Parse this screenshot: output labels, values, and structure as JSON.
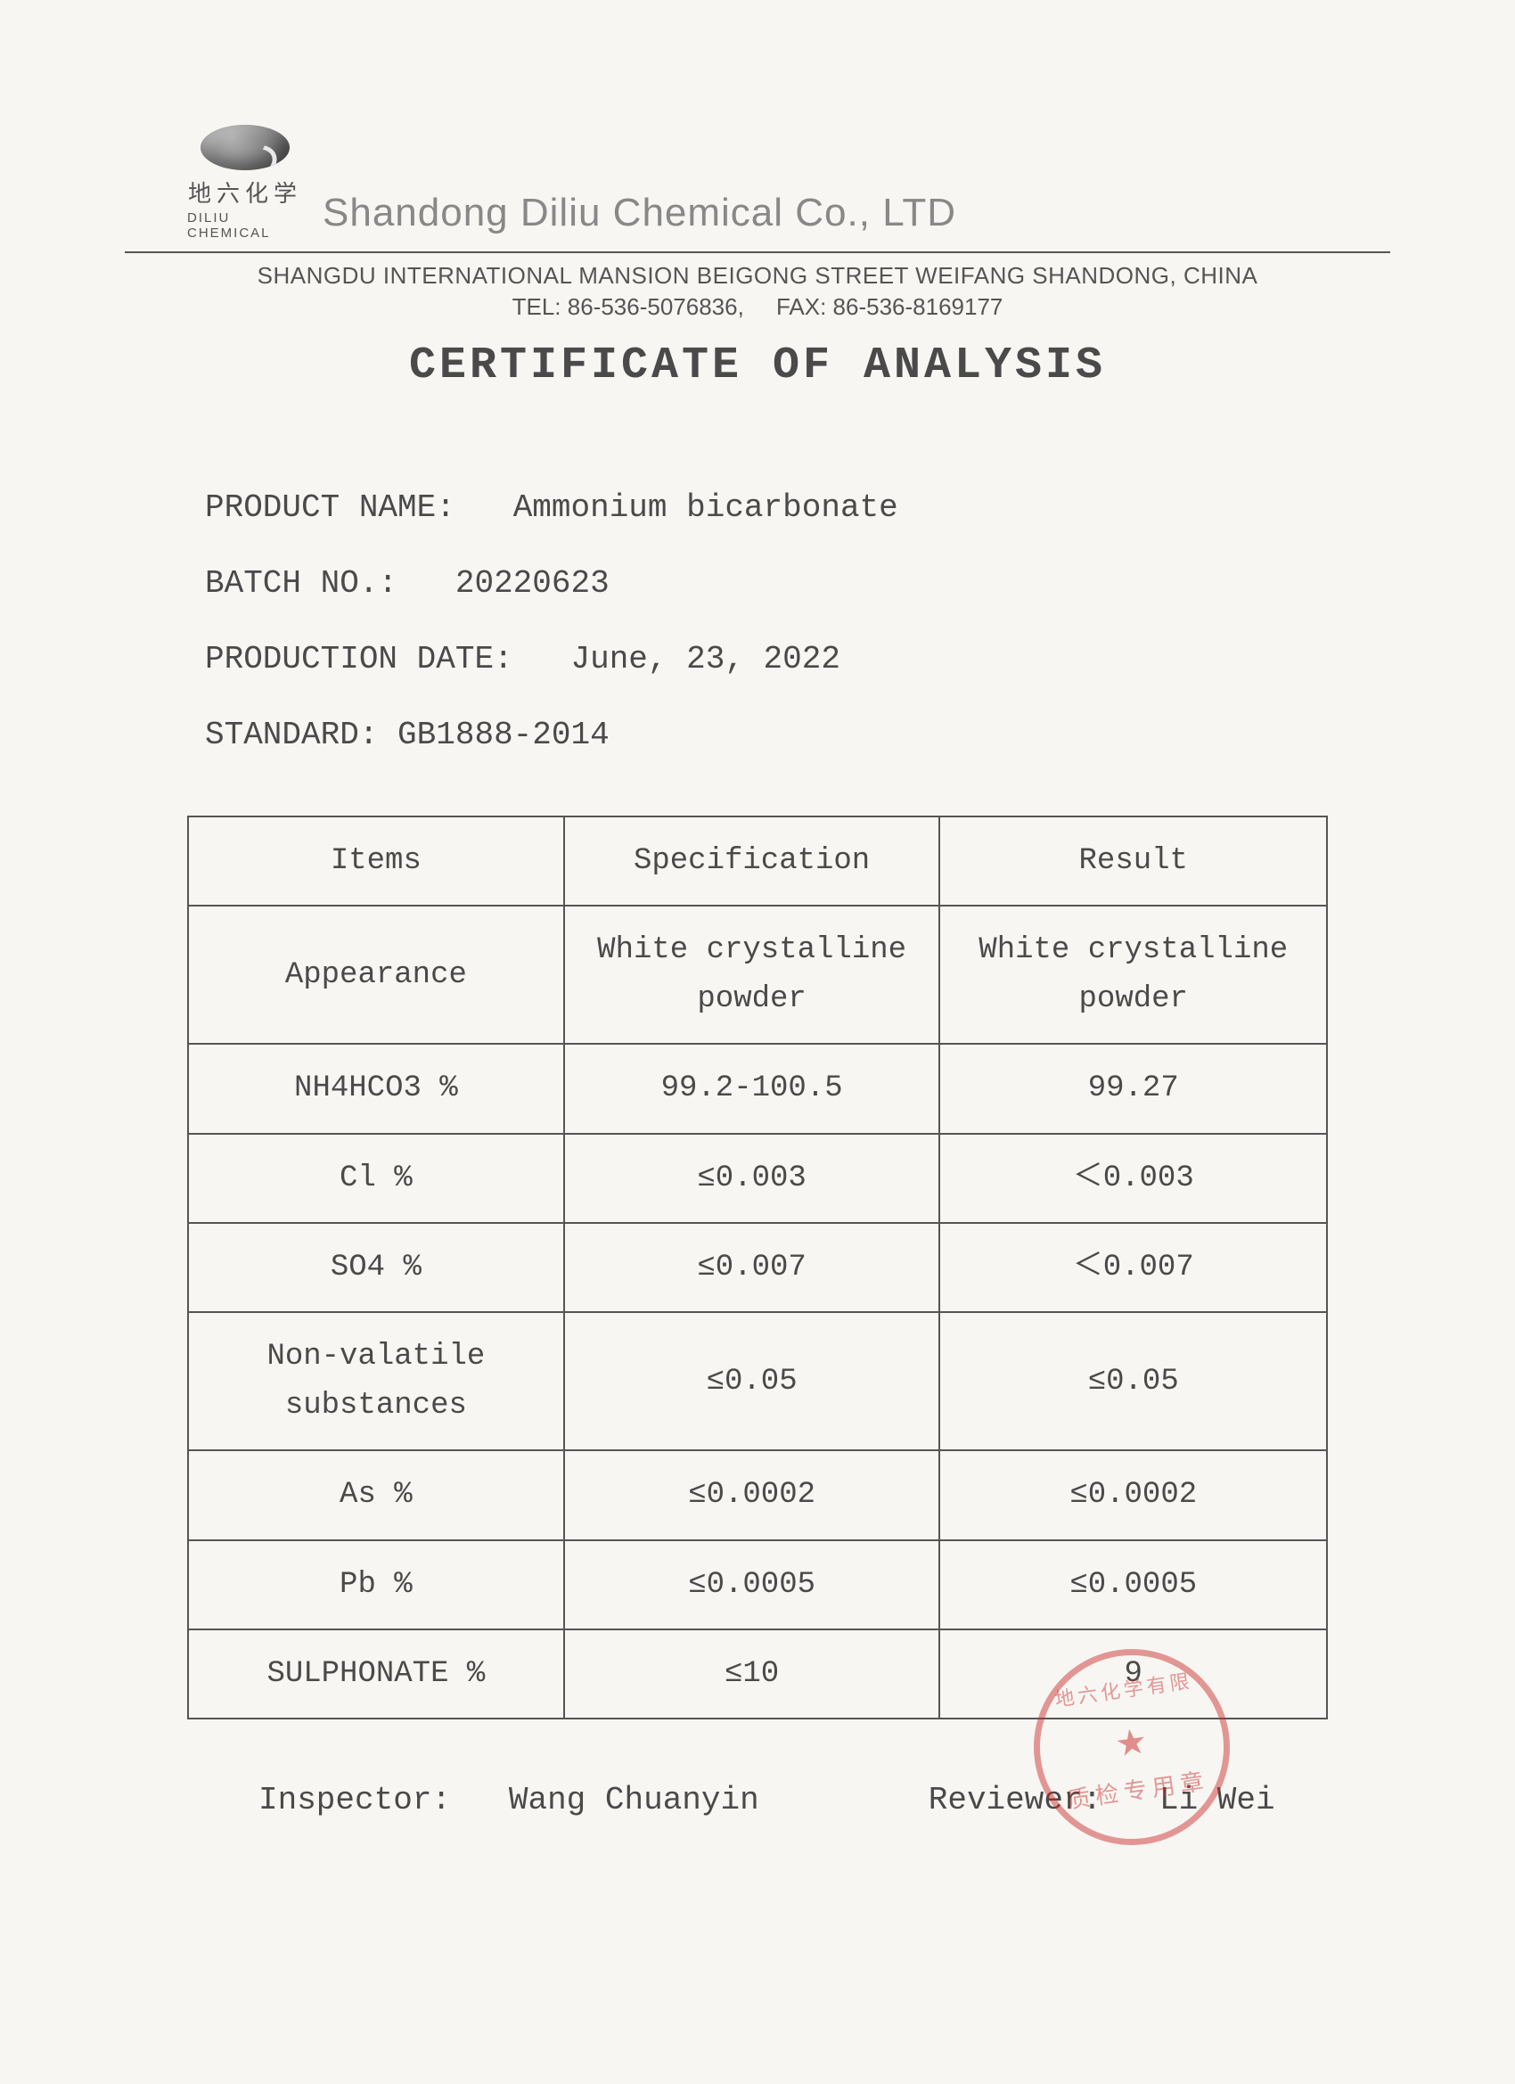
{
  "header": {
    "logo_cn": "地六化学",
    "logo_en": "DILIU CHEMICAL",
    "company_name": "Shandong Diliu Chemical Co., LTD",
    "address": "SHANGDU INTERNATIONAL MANSION BEIGONG STREET WEIFANG SHANDONG, CHINA",
    "tel_label": "TEL:",
    "tel": "86-536-5076836,",
    "fax_label": "FAX:",
    "fax": "86-536-8169177"
  },
  "title": "CERTIFICATE OF ANALYSIS",
  "info": {
    "product_label": "PRODUCT NAME:",
    "product_value": "Ammonium bicarbonate",
    "batch_label": "BATCH NO.:",
    "batch_value": "20220623",
    "date_label": "PRODUCTION DATE:",
    "date_value": "June, 23, 2022",
    "standard_label": "STANDARD:",
    "standard_value": "GB1888-2014"
  },
  "table": {
    "columns": [
      "Items",
      "Specification",
      "Result"
    ],
    "rows": [
      {
        "item": "Appearance",
        "spec": "White crystalline powder",
        "result": "White crystalline powder"
      },
      {
        "item": "NH4HCO3 %",
        "spec": "99.2-100.5",
        "result": "99.27"
      },
      {
        "item": "Cl %",
        "spec": "≤0.003",
        "result": "＜0.003"
      },
      {
        "item": "SO4 %",
        "spec": "≤0.007",
        "result": "＜0.007"
      },
      {
        "item": "Non-valatile substances",
        "spec": "≤0.05",
        "result": "≤0.05"
      },
      {
        "item": "As %",
        "spec": "≤0.0002",
        "result": "≤0.0002"
      },
      {
        "item": "Pb %",
        "spec": "≤0.0005",
        "result": "≤0.0005"
      },
      {
        "item": "SULPHONATE %",
        "spec": "≤10",
        "result": "9"
      }
    ]
  },
  "signatures": {
    "inspector_label": "Inspector:",
    "inspector_name": "Wang Chuanyin",
    "reviewer_label": "Reviewer:",
    "reviewer_name": "Li Wei"
  },
  "stamp": {
    "top_text": "地六化学有限",
    "bottom_text": "质检专用章",
    "star": "★"
  },
  "style": {
    "text_color": "#4a4a4a",
    "border_color": "#555555",
    "background_color": "#f8f6f2",
    "stamp_color": "rgba(200,40,40,0.55)",
    "body_fontsize": 36,
    "title_fontsize": 50,
    "table_fontsize": 34
  }
}
